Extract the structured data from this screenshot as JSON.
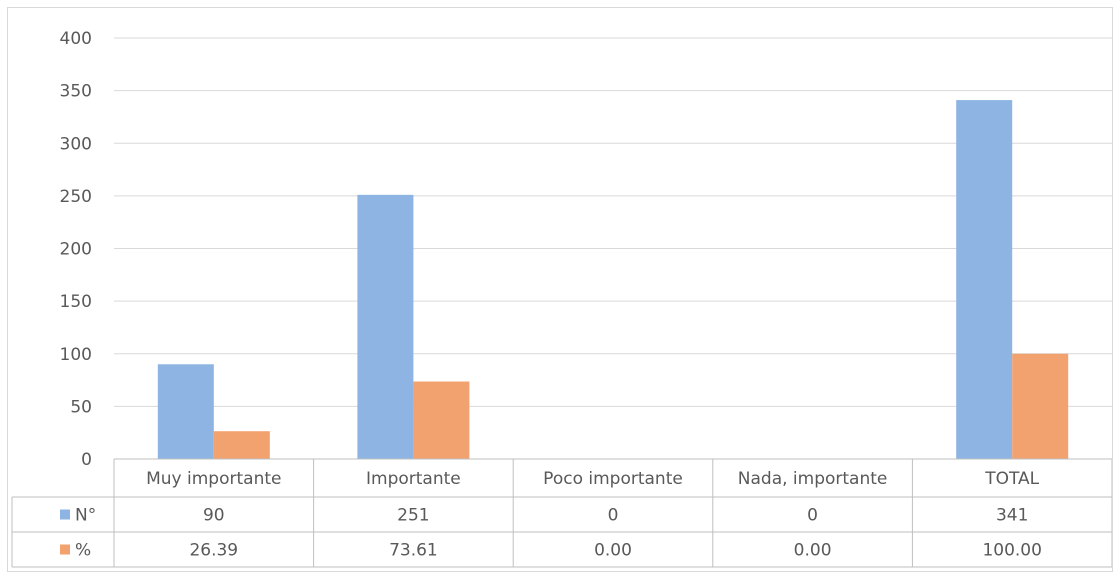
{
  "chart_data": {
    "type": "bar",
    "title": "",
    "xlabel": "",
    "ylabel": "",
    "ylim": [
      0,
      400
    ],
    "y_ticks": [
      0,
      50,
      100,
      150,
      200,
      250,
      300,
      350,
      400
    ],
    "grid": true,
    "legend": "data-table-left",
    "categories": [
      "Muy importante",
      "Importante",
      "Poco importante",
      "Nada, importante",
      "TOTAL"
    ],
    "series": [
      {
        "name": "N°",
        "color": "#8DB4E2",
        "values": [
          90,
          251,
          0,
          0,
          341
        ],
        "labels": [
          "90",
          "251",
          "0",
          "0",
          "341"
        ]
      },
      {
        "name": "%",
        "color": "#F2A26F",
        "values": [
          26.39,
          73.61,
          0.0,
          0.0,
          100.0
        ],
        "labels": [
          "26.39",
          "73.61",
          "0.00",
          "0.00",
          "100.00"
        ]
      }
    ]
  }
}
